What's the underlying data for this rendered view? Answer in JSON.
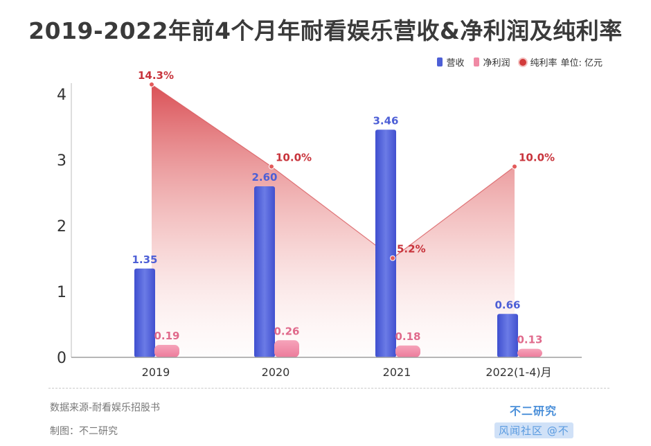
{
  "title": "2019-2022年前4个月年耐看娱乐营收&净利润及纯利率",
  "legend": {
    "revenue": "营收",
    "net_profit": "净利润",
    "margin": "纯利率",
    "unit": "单位: 亿元"
  },
  "colors": {
    "revenue": "#4d5fd6",
    "net_profit": "#f08aa5",
    "margin": "#d23a3a",
    "margin_label": "#c8343c",
    "revenue_label": "#4d5fd6",
    "profit_label": "#e06a8c"
  },
  "footer": {
    "source": "数据来源-耐看娱乐招股书",
    "maker": "制图：不二研究",
    "brand": "不二研究",
    "watermark": "风闻社区 @不"
  },
  "chart_data": {
    "type": "bar",
    "categories": [
      "2019",
      "2020",
      "2021",
      "2022(1-4)月"
    ],
    "series": [
      {
        "name": "营收",
        "values": [
          1.35,
          2.6,
          3.46,
          0.66
        ],
        "labels": [
          "1.35",
          "2.60",
          "3.46",
          "0.66"
        ]
      },
      {
        "name": "净利润",
        "values": [
          0.19,
          0.26,
          0.18,
          0.13
        ],
        "labels": [
          "0.19",
          "0.26",
          "0.18",
          "0.13"
        ]
      },
      {
        "name": "纯利率",
        "type": "area",
        "values": [
          14.3,
          10.0,
          5.2,
          10.0
        ],
        "labels": [
          "14.3%",
          "10.0%",
          "5.2%",
          "10.0%"
        ]
      }
    ],
    "yticks": [
      "0",
      "1",
      "2",
      "3",
      "4"
    ],
    "ylim": [
      0,
      4.2
    ]
  }
}
